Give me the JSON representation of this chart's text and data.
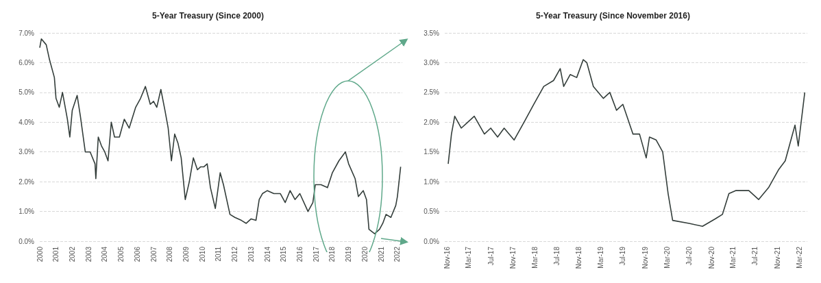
{
  "chart_data": [
    {
      "type": "line",
      "title": "5-Year Treasury (Since 2000)",
      "xlim": [
        2000,
        2022.3
      ],
      "xticks": [
        2000,
        2001,
        2002,
        2003,
        2004,
        2005,
        2006,
        2007,
        2008,
        2009,
        2010,
        2011,
        2012,
        2013,
        2014,
        2015,
        2016,
        2017,
        2018,
        2019,
        2020,
        2021,
        2022
      ],
      "ylim": [
        0,
        7
      ],
      "yticks": [
        {
          "value": 0,
          "label": "0.0%"
        },
        {
          "value": 1,
          "label": "1.0%"
        },
        {
          "value": 2,
          "label": "2.0%"
        },
        {
          "value": 3,
          "label": "3.0%"
        },
        {
          "value": 4,
          "label": "4.0%"
        },
        {
          "value": 5,
          "label": "5.0%"
        },
        {
          "value": 6,
          "label": "6.0%"
        },
        {
          "value": 7,
          "label": "7.0%"
        }
      ],
      "grid": "y",
      "marker": "none",
      "series": [
        {
          "color": "#333d3a",
          "x": [
            2000.0,
            2000.1,
            2000.4,
            2000.6,
            2000.9,
            2001.0,
            2001.2,
            2001.4,
            2001.7,
            2001.85,
            2002.0,
            2002.3,
            2002.5,
            2002.8,
            2003.1,
            2003.4,
            2003.45,
            2003.6,
            2003.8,
            2004.0,
            2004.2,
            2004.4,
            2004.6,
            2004.9,
            2005.2,
            2005.5,
            2005.9,
            2006.2,
            2006.5,
            2006.8,
            2007.0,
            2007.2,
            2007.45,
            2007.7,
            2007.9,
            2008.1,
            2008.3,
            2008.5,
            2008.7,
            2008.95,
            2009.2,
            2009.45,
            2009.7,
            2009.9,
            2010.1,
            2010.3,
            2010.5,
            2010.8,
            2011.1,
            2011.3,
            2011.7,
            2012.0,
            2012.4,
            2012.7,
            2013.0,
            2013.3,
            2013.5,
            2013.7,
            2014.0,
            2014.4,
            2014.8,
            2015.1,
            2015.4,
            2015.7,
            2016.0,
            2016.5,
            2016.8,
            2016.95,
            2017.3,
            2017.7,
            2018.0,
            2018.4,
            2018.8,
            2019.0,
            2019.4,
            2019.6,
            2019.9,
            2020.1,
            2020.25,
            2020.6,
            2020.9,
            2021.1,
            2021.3,
            2021.6,
            2021.9,
            2022.0,
            2022.2
          ],
          "values": [
            6.5,
            6.8,
            6.6,
            6.1,
            5.5,
            4.8,
            4.5,
            5.0,
            4.1,
            3.5,
            4.4,
            4.9,
            4.2,
            3.0,
            3.0,
            2.6,
            2.1,
            3.5,
            3.2,
            3.0,
            2.7,
            4.0,
            3.5,
            3.5,
            4.1,
            3.8,
            4.5,
            4.8,
            5.2,
            4.6,
            4.7,
            4.5,
            5.1,
            4.4,
            3.8,
            2.7,
            3.6,
            3.3,
            2.8,
            1.4,
            2.0,
            2.8,
            2.4,
            2.5,
            2.5,
            2.6,
            1.8,
            1.1,
            2.3,
            1.9,
            0.9,
            0.8,
            0.7,
            0.6,
            0.75,
            0.7,
            1.4,
            1.6,
            1.7,
            1.6,
            1.6,
            1.3,
            1.7,
            1.4,
            1.6,
            1.0,
            1.3,
            1.9,
            1.9,
            1.8,
            2.3,
            2.7,
            3.0,
            2.6,
            2.1,
            1.5,
            1.7,
            1.4,
            0.4,
            0.25,
            0.4,
            0.6,
            0.9,
            0.8,
            1.2,
            1.5,
            2.5
          ]
        }
      ]
    },
    {
      "type": "line",
      "title": "5-Year Treasury (Since November 2016)",
      "xlim": [
        "2016-10-20",
        "2022-04-15"
      ],
      "xticks": [
        {
          "value": "2016-11-01",
          "label": "Nov-16"
        },
        {
          "value": "2017-03-01",
          "label": "Mar-17"
        },
        {
          "value": "2017-07-01",
          "label": "Jul-17"
        },
        {
          "value": "2017-11-01",
          "label": "Nov-17"
        },
        {
          "value": "2018-03-01",
          "label": "Mar-18"
        },
        {
          "value": "2018-07-01",
          "label": "Jul-18"
        },
        {
          "value": "2018-11-01",
          "label": "Nov-18"
        },
        {
          "value": "2019-03-01",
          "label": "Mar-19"
        },
        {
          "value": "2019-07-01",
          "label": "Jul-19"
        },
        {
          "value": "2019-11-01",
          "label": "Nov-19"
        },
        {
          "value": "2020-03-01",
          "label": "Mar-20"
        },
        {
          "value": "2020-07-01",
          "label": "Jul-20"
        },
        {
          "value": "2020-11-01",
          "label": "Nov-20"
        },
        {
          "value": "2021-03-01",
          "label": "Mar-21"
        },
        {
          "value": "2021-07-01",
          "label": "Jul-21"
        },
        {
          "value": "2021-11-01",
          "label": "Nov-21"
        },
        {
          "value": "2022-03-01",
          "label": "Mar-22"
        }
      ],
      "ylim": [
        0,
        3.5
      ],
      "yticks": [
        {
          "value": 0,
          "label": "0.0%"
        },
        {
          "value": 0.5,
          "label": "0.5%"
        },
        {
          "value": 1,
          "label": "1.0%"
        },
        {
          "value": 1.5,
          "label": "1.5%"
        },
        {
          "value": 2,
          "label": "2.0%"
        },
        {
          "value": 2.5,
          "label": "2.5%"
        },
        {
          "value": 3,
          "label": "3.0%"
        },
        {
          "value": 3.5,
          "label": "3.5%"
        }
      ],
      "grid": "y",
      "marker": "none",
      "series": [
        {
          "color": "#333d3a",
          "x": [
            "2016-11-08",
            "2016-11-26",
            "2016-12-14",
            "2017-01-19",
            "2017-02-24",
            "2017-04-01",
            "2017-05-27",
            "2017-07-01",
            "2017-08-08",
            "2017-09-13",
            "2017-11-07",
            "2018-01-01",
            "2018-02-24",
            "2018-04-20",
            "2018-06-13",
            "2018-07-20",
            "2018-08-08",
            "2018-09-13",
            "2018-10-19",
            "2018-11-24",
            "2018-12-14",
            "2019-01-19",
            "2019-03-15",
            "2019-04-20",
            "2019-05-27",
            "2019-07-01",
            "2019-08-26",
            "2019-10-01",
            "2019-11-07",
            "2019-11-25",
            "2020-01-01",
            "2020-02-06",
            "2020-03-07",
            "2020-04-01",
            "2020-07-01",
            "2020-09-13",
            "2020-11-25",
            "2021-01-01",
            "2021-02-06",
            "2021-03-15",
            "2021-05-27",
            "2021-07-20",
            "2021-09-13",
            "2021-11-07",
            "2021-12-14",
            "2022-01-19",
            "2022-02-06",
            "2022-02-24",
            "2022-04-01"
          ],
          "values": [
            1.3,
            1.8,
            2.1,
            1.9,
            2.0,
            2.1,
            1.8,
            1.9,
            1.75,
            1.9,
            1.7,
            2.0,
            2.3,
            2.6,
            2.7,
            2.9,
            2.6,
            2.8,
            2.75,
            3.05,
            3.0,
            2.6,
            2.4,
            2.5,
            2.2,
            2.3,
            1.8,
            1.8,
            1.4,
            1.75,
            1.7,
            1.5,
            0.8,
            0.35,
            0.3,
            0.25,
            0.38,
            0.45,
            0.8,
            0.85,
            0.85,
            0.7,
            0.9,
            1.2,
            1.35,
            1.75,
            1.95,
            1.6,
            2.5
          ]
        }
      ]
    }
  ]
}
